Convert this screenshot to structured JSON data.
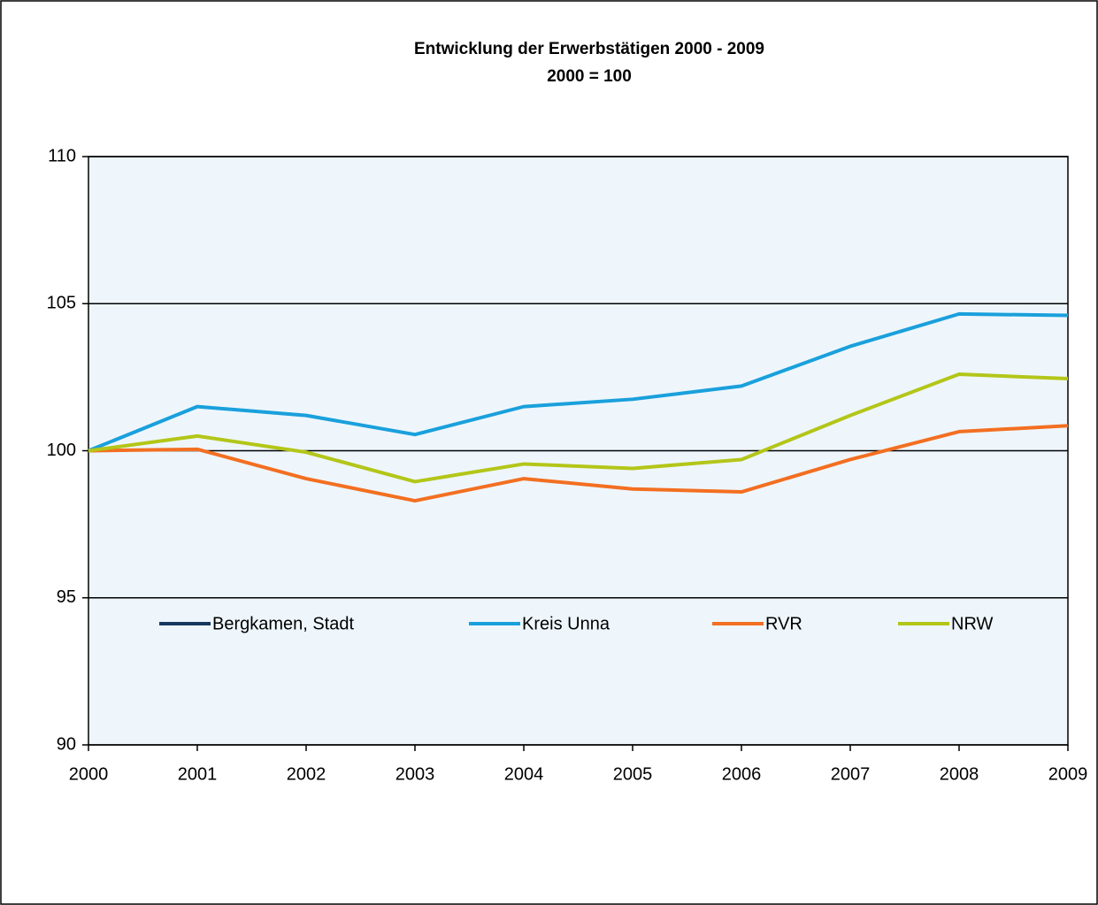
{
  "chart_data": {
    "type": "line",
    "title": "Entwicklung der Erwerbstätigen 2000 - 2009",
    "subtitle": "2000 = 100",
    "x": [
      2000,
      2001,
      2002,
      2003,
      2004,
      2005,
      2006,
      2007,
      2008,
      2009
    ],
    "xlim": [
      2000,
      2009
    ],
    "xticks": [
      2000,
      2001,
      2002,
      2003,
      2004,
      2005,
      2006,
      2007,
      2008,
      2009
    ],
    "ylim": [
      90,
      110
    ],
    "yticks": [
      90,
      95,
      100,
      105,
      110
    ],
    "grid": true,
    "legend": "bottom",
    "series": [
      {
        "name": "Bergkamen, Stadt",
        "color": "#17375e",
        "values": [
          null,
          null,
          null,
          null,
          null,
          null,
          null,
          null,
          null,
          null
        ]
      },
      {
        "name": "Kreis Unna",
        "color": "#1aa0dc",
        "values": [
          100,
          101.5,
          101.2,
          100.55,
          101.5,
          101.75,
          102.2,
          103.55,
          104.65,
          104.6
        ]
      },
      {
        "name": "RVR",
        "color": "#f36f21",
        "values": [
          100,
          100.05,
          99.05,
          98.3,
          99.05,
          98.7,
          98.6,
          99.7,
          100.65,
          100.85
        ]
      },
      {
        "name": "NRW",
        "color": "#b3c618",
        "values": [
          100,
          100.5,
          99.95,
          98.95,
          99.55,
          99.4,
          99.7,
          101.2,
          102.6,
          102.45
        ]
      }
    ]
  }
}
